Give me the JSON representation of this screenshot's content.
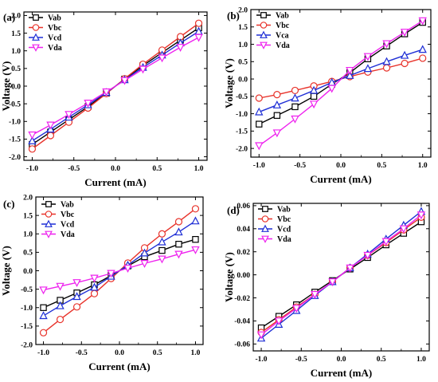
{
  "chart_data": [
    {
      "panel": "(a)",
      "type": "line",
      "xlabel": "Current (mA)",
      "ylabel": "Voltage (V)",
      "xlim": [
        -1.1,
        1.1
      ],
      "ylim": [
        -2.1,
        2.1
      ],
      "xticks": [
        "-1.0",
        "-0.5",
        "0.0",
        "0.5",
        "1.0"
      ],
      "yticks": [
        "-2.0",
        "-1.5",
        "-1.0",
        "-0.5",
        "0.0",
        "0.5",
        "1.0",
        "1.5",
        "2.0"
      ],
      "x": [
        -1.0,
        -0.78,
        -0.56,
        -0.33,
        -0.11,
        0.11,
        0.33,
        0.56,
        0.78,
        1.0
      ],
      "legend": "top-left",
      "series": [
        {
          "name": "Vab",
          "marker": "square",
          "color": "#000000",
          "values": [
            -1.65,
            -1.3,
            -0.95,
            -0.58,
            -0.2,
            0.2,
            0.58,
            0.95,
            1.3,
            1.65
          ]
        },
        {
          "name": "Vbc",
          "marker": "circle",
          "color": "#e8322a",
          "values": [
            -1.78,
            -1.4,
            -1.02,
            -0.62,
            -0.21,
            0.21,
            0.62,
            1.02,
            1.4,
            1.78
          ]
        },
        {
          "name": "Vcd",
          "marker": "triangle",
          "color": "#1f2fd6",
          "values": [
            -1.55,
            -1.22,
            -0.88,
            -0.53,
            -0.18,
            0.18,
            0.53,
            0.88,
            1.22,
            1.55
          ]
        },
        {
          "name": "Vda",
          "marker": "triangle-down",
          "color": "#ee22ee",
          "values": [
            -1.38,
            -1.1,
            -0.8,
            -0.48,
            -0.16,
            0.16,
            0.48,
            0.8,
            1.1,
            1.38
          ]
        }
      ]
    },
    {
      "panel": "(b)",
      "type": "line",
      "xlabel": "Current (mA)",
      "ylabel": "Voltage (V)",
      "xlim": [
        -1.1,
        1.1
      ],
      "ylim": [
        -2.25,
        2.0
      ],
      "xticks": [
        "-1.0",
        "-0.5",
        "0.0",
        "0.5",
        "1.0"
      ],
      "yticks": [
        "-2.0",
        "-1.5",
        "-1.0",
        "-0.5",
        "0.0",
        "0.5",
        "1.0",
        "1.5",
        "2.0"
      ],
      "x": [
        -1.0,
        -0.78,
        -0.56,
        -0.33,
        -0.11,
        0.11,
        0.33,
        0.56,
        0.78,
        1.0
      ],
      "legend": "top-left",
      "series": [
        {
          "name": "Vab",
          "marker": "square",
          "color": "#000000",
          "values": [
            -1.3,
            -1.05,
            -0.8,
            -0.5,
            -0.15,
            0.18,
            0.58,
            0.95,
            1.3,
            1.63
          ]
        },
        {
          "name": "Vbc",
          "marker": "circle",
          "color": "#e8322a",
          "values": [
            -0.55,
            -0.45,
            -0.33,
            -0.2,
            -0.07,
            0.07,
            0.2,
            0.32,
            0.45,
            0.6
          ]
        },
        {
          "name": "Vca",
          "marker": "triangle",
          "color": "#1f2fd6",
          "values": [
            -0.95,
            -0.75,
            -0.55,
            -0.33,
            -0.1,
            0.1,
            0.3,
            0.5,
            0.68,
            0.85
          ]
        },
        {
          "name": "Vda",
          "marker": "triangle-down",
          "color": "#ee22ee",
          "values": [
            -1.92,
            -1.55,
            -1.15,
            -0.72,
            -0.27,
            0.25,
            0.65,
            1.02,
            1.35,
            1.68
          ]
        }
      ]
    },
    {
      "panel": "(c)",
      "type": "line",
      "xlabel": "Current (mA)",
      "ylabel": "Voltage (V)",
      "xlim": [
        -1.1,
        1.1
      ],
      "ylim": [
        -2.0,
        2.0
      ],
      "xticks": [
        "-1.0",
        "-0.5",
        "0.0",
        "0.5",
        "1.0"
      ],
      "yticks": [
        "-2.0",
        "-1.5",
        "-1.0",
        "-0.5",
        "0.0",
        "0.5",
        "1.0",
        "1.5",
        "2.0"
      ],
      "x": [
        -1.0,
        -0.78,
        -0.56,
        -0.33,
        -0.11,
        0.11,
        0.33,
        0.56,
        0.78,
        1.0
      ],
      "legend": "top-left",
      "series": [
        {
          "name": "Vab",
          "marker": "square",
          "color": "#000000",
          "values": [
            -1.0,
            -0.8,
            -0.6,
            -0.38,
            -0.13,
            0.13,
            0.38,
            0.55,
            0.72,
            0.85
          ]
        },
        {
          "name": "Vbc",
          "marker": "circle",
          "color": "#e8322a",
          "values": [
            -1.68,
            -1.32,
            -0.98,
            -0.62,
            -0.21,
            0.21,
            0.62,
            1.0,
            1.33,
            1.68
          ]
        },
        {
          "name": "Vcd",
          "marker": "triangle",
          "color": "#1f2fd6",
          "values": [
            -1.22,
            -0.95,
            -0.7,
            -0.45,
            -0.15,
            0.15,
            0.48,
            0.78,
            1.05,
            1.35
          ]
        },
        {
          "name": "Vda",
          "marker": "triangle-down",
          "color": "#ee22ee",
          "values": [
            -0.52,
            -0.42,
            -0.32,
            -0.2,
            -0.07,
            0.07,
            0.2,
            0.32,
            0.45,
            0.57
          ]
        }
      ]
    },
    {
      "panel": "(d)",
      "type": "line",
      "xlabel": "Current (mA)",
      "ylabel": "Voltage (V)",
      "xlim": [
        -1.1,
        1.1
      ],
      "ylim": [
        -0.066,
        0.062
      ],
      "xticks": [
        "-1.0",
        "-0.5",
        "0.0",
        "0.5",
        "1.0"
      ],
      "yticks": [
        "-0.06",
        "-0.04",
        "-0.02",
        "0.00",
        "0.02",
        "0.04",
        "0.06"
      ],
      "x": [
        -1.0,
        -0.78,
        -0.56,
        -0.33,
        -0.11,
        0.11,
        0.33,
        0.56,
        0.78,
        1.0
      ],
      "legend": "top-left",
      "series": [
        {
          "name": "Vab",
          "marker": "square",
          "color": "#000000",
          "values": [
            -0.046,
            -0.036,
            -0.026,
            -0.015,
            -0.005,
            0.005,
            0.015,
            0.026,
            0.036,
            0.046
          ]
        },
        {
          "name": "Vbc",
          "marker": "circle",
          "color": "#e8322a",
          "values": [
            -0.05,
            -0.039,
            -0.028,
            -0.017,
            -0.006,
            0.006,
            0.017,
            0.028,
            0.039,
            0.05
          ]
        },
        {
          "name": "Vcd",
          "marker": "triangle",
          "color": "#1f2fd6",
          "values": [
            -0.055,
            -0.043,
            -0.031,
            -0.018,
            -0.006,
            0.006,
            0.018,
            0.031,
            0.043,
            0.055
          ]
        },
        {
          "name": "Vda",
          "marker": "triangle-down",
          "color": "#ee22ee",
          "values": [
            -0.052,
            -0.04,
            -0.029,
            -0.017,
            -0.006,
            0.006,
            0.017,
            0.029,
            0.04,
            0.052
          ]
        }
      ]
    }
  ]
}
